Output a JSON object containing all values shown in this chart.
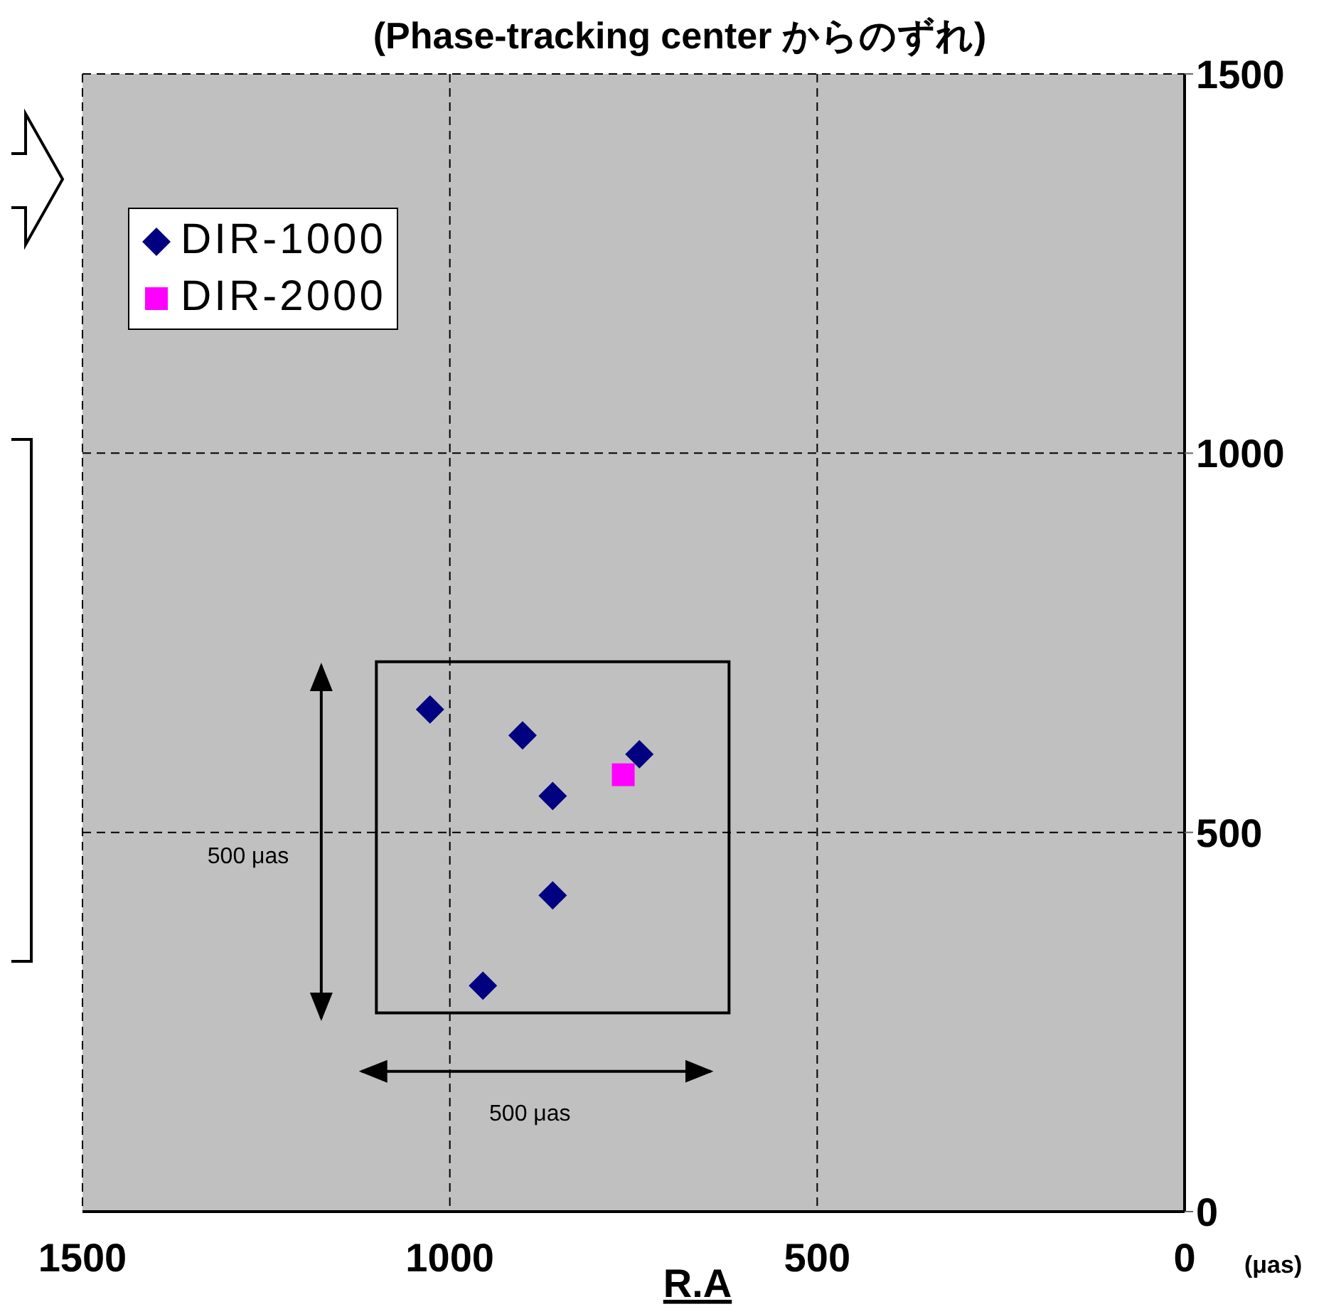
{
  "chart_data": {
    "type": "scatter",
    "title": "(Phase-tracking center からのずれ)",
    "xlabel": "R.A",
    "xlim": [
      1500,
      0
    ],
    "xticks": [
      1500,
      1000,
      500,
      0
    ],
    "ylim": [
      0,
      1500
    ],
    "yticks": [
      0,
      500,
      1000,
      1500
    ],
    "grid": true,
    "legend": "top left",
    "series": [
      {
        "name": "DIR-1000",
        "color": "#000080",
        "marker": "diamond",
        "x": [
          1027,
          901,
          742,
          860,
          860,
          955
        ],
        "values": [
          662,
          628,
          603,
          548,
          417,
          298
        ]
      },
      {
        "name": "DIR-2000",
        "color": "#ff00ff",
        "marker": "square",
        "x": [
          764
        ],
        "values": [
          576
        ]
      }
    ],
    "annotations": [
      "500 μas",
      "500 μas",
      "(μas)"
    ]
  }
}
